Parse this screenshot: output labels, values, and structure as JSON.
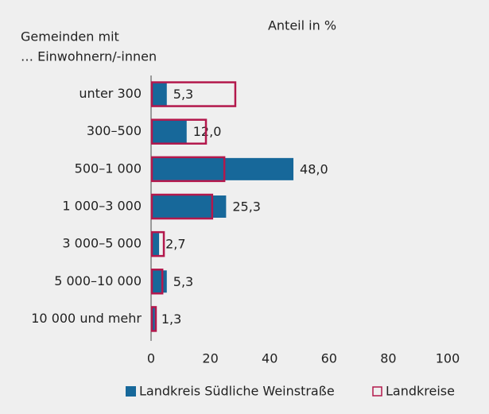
{
  "chart_data": {
    "type": "hbar",
    "title": "Anteil in %",
    "ylabel": [
      "Gemeinden mit",
      "… Einwohnern/-innen"
    ],
    "categories": [
      "unter 300",
      "300–500",
      "500–1 000",
      "1 000–3 000",
      "3 000–5 000",
      "5 000–10 000",
      "10 000 und mehr"
    ],
    "series": [
      {
        "name": "Landkreis Südliche Weinstraße",
        "color": "#17689a",
        "style": "filled",
        "values": [
          5.3,
          12.0,
          48.0,
          25.3,
          2.7,
          5.3,
          1.3
        ],
        "value_labels": [
          "5,3",
          "12,0",
          "48,0",
          "25,3",
          "2,7",
          "5,3",
          "1,3"
        ]
      },
      {
        "name": "Landkreise",
        "color": "#b3184c",
        "style": "outline",
        "values": [
          28.4,
          18.5,
          24.7,
          20.6,
          4.3,
          3.8,
          1.6
        ]
      }
    ],
    "xlim": [
      0,
      100
    ],
    "xticks": [
      0,
      20,
      40,
      60,
      80,
      100
    ],
    "grid": false
  }
}
